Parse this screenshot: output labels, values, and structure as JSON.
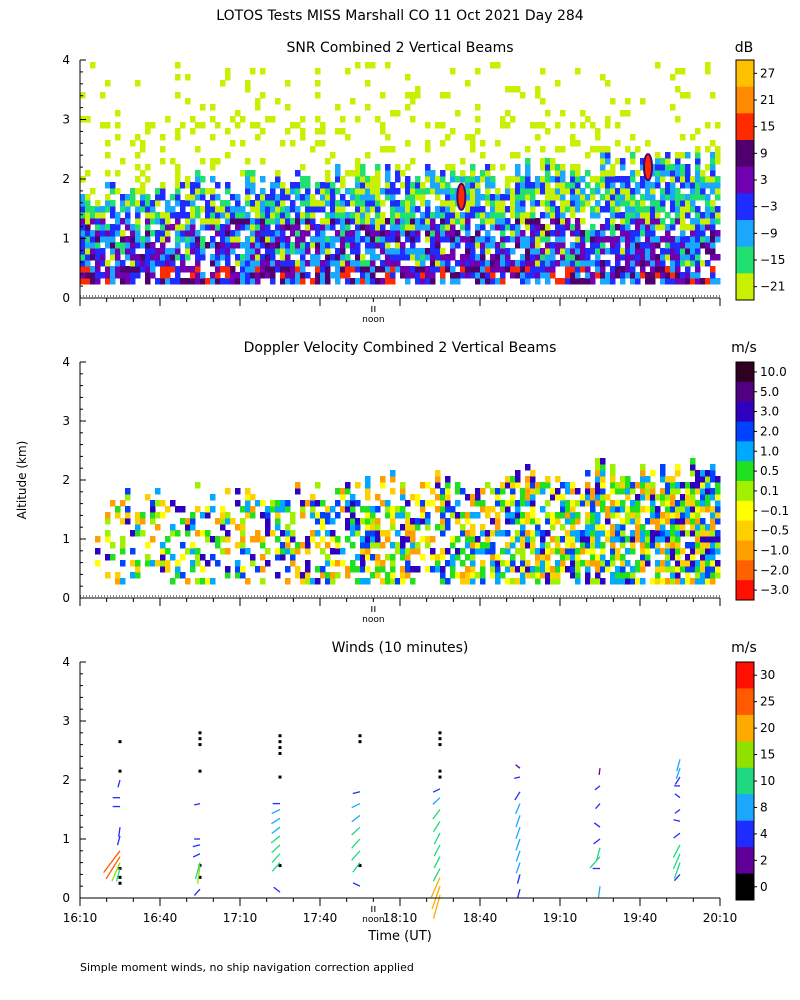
{
  "figure": {
    "title": "LOTOS Tests MISS Marshall CO  11 Oct 2021 Day 284",
    "y_axis_label": "Altitude (km)",
    "x_axis_label": "Time (UT)",
    "noon_label": "noon",
    "footnote": "Simple moment winds, no ship navigation correction applied"
  },
  "chart_data": [
    {
      "type": "heatmap",
      "title": "SNR Combined 2 Vertical Beams",
      "unit": "dB",
      "ylim": [
        0,
        4
      ],
      "yticks": [
        "0",
        "1",
        "2",
        "3",
        "4"
      ],
      "xlim": [
        970,
        1210
      ],
      "colorbar_labels": [
        "27",
        "21",
        "15",
        "9",
        "3",
        "−3",
        "−9",
        "−15",
        "−21"
      ],
      "colorbar_colors": [
        "#ffc000",
        "#ff8c00",
        "#ff2a00",
        "#50006e",
        "#7000b0",
        "#1e2cff",
        "#1aa8ff",
        "#22e070",
        "#c8f000"
      ],
      "features": [
        {
          "label": "echo layer top",
          "time_range": [
            970,
            1210
          ],
          "approx_top_km_start": 1.9,
          "approx_top_km_end": 2.4
        },
        {
          "label": "high SNR spot",
          "time": 1113,
          "alt_km": 1.7
        },
        {
          "label": "high SNR spot",
          "time": 1183,
          "alt_km": 2.2
        }
      ]
    },
    {
      "type": "heatmap",
      "title": "Doppler Velocity Combined 2 Vertical Beams",
      "unit": "m/s",
      "ylim": [
        0,
        4
      ],
      "yticks": [
        "0",
        "1",
        "2",
        "3",
        "4"
      ],
      "xlim": [
        970,
        1210
      ],
      "colorbar_labels": [
        "10.0",
        "5.0",
        "3.0",
        "2.0",
        "1.0",
        "0.5",
        "0.1",
        "−0.1",
        "−0.5",
        "−1.0",
        "−2.0",
        "−3.0"
      ],
      "colorbar_colors": [
        "#300020",
        "#500080",
        "#3000c0",
        "#0040ff",
        "#00a8ff",
        "#20e020",
        "#a0f000",
        "#ffff00",
        "#ffd000",
        "#ffa000",
        "#ff6000",
        "#ff1000"
      ]
    },
    {
      "type": "scatter",
      "title": "Winds (10 minutes)",
      "unit": "m/s",
      "ylim": [
        0,
        4
      ],
      "yticks": [
        "0",
        "1",
        "2",
        "3",
        "4"
      ],
      "xlim": [
        970,
        1210
      ],
      "xticks": [
        970,
        1000,
        1030,
        1060,
        1090,
        1120,
        1150,
        1180,
        1210
      ],
      "xtick_labels": [
        "16:10",
        "16:40",
        "17:10",
        "17:40",
        "18:10",
        "18:40",
        "19:10",
        "19:40",
        "20:10"
      ],
      "colorbar_labels": [
        "30",
        "25",
        "20",
        "15",
        "10",
        "8",
        "4",
        "2",
        "0"
      ],
      "colorbar_colors": [
        "#ff1000",
        "#ff5a00",
        "#ffaa00",
        "#90e000",
        "#20d880",
        "#1aa8ff",
        "#1e2cff",
        "#60009a",
        "#000000"
      ],
      "profiles": [
        {
          "time": 985,
          "levels": [
            {
              "alt": 0.25,
              "speed": 0
            },
            {
              "alt": 0.35,
              "speed": 0
            },
            {
              "alt": 0.5,
              "speed": 0
            },
            {
              "alt": 0.5,
              "speed": 10,
              "dir": 200
            },
            {
              "alt": 0.6,
              "speed": 18,
              "dir": 210
            },
            {
              "alt": 0.7,
              "speed": 26,
              "dir": 220
            },
            {
              "alt": 0.8,
              "speed": 28,
              "dir": 225
            },
            {
              "alt": 1.05,
              "speed": 6,
              "dir": 200
            },
            {
              "alt": 1.2,
              "speed": 6,
              "dir": 190
            },
            {
              "alt": 1.55,
              "speed": 6,
              "dir": 270
            },
            {
              "alt": 1.7,
              "speed": 6,
              "dir": 270
            },
            {
              "alt": 2.0,
              "speed": 4,
              "dir": 200
            },
            {
              "alt": 2.15,
              "speed": 0
            },
            {
              "alt": 2.65,
              "speed": 0
            }
          ]
        },
        {
          "time": 1015,
          "levels": [
            {
              "alt": 0.15,
              "speed": 6,
              "dir": 230
            },
            {
              "alt": 0.35,
              "speed": 0
            },
            {
              "alt": 0.55,
              "speed": 0
            },
            {
              "alt": 0.55,
              "speed": 15,
              "dir": 190
            },
            {
              "alt": 0.6,
              "speed": 14,
              "dir": 200
            },
            {
              "alt": 0.75,
              "speed": 6,
              "dir": 250
            },
            {
              "alt": 0.9,
              "speed": 6,
              "dir": 260
            },
            {
              "alt": 1.0,
              "speed": 4,
              "dir": 270
            },
            {
              "alt": 1.6,
              "speed": 4,
              "dir": 260
            },
            {
              "alt": 2.15,
              "speed": 0
            },
            {
              "alt": 2.6,
              "speed": 0
            },
            {
              "alt": 2.7,
              "speed": 0
            },
            {
              "alt": 2.8,
              "speed": 0
            }
          ]
        },
        {
          "time": 1045,
          "levels": [
            {
              "alt": 0.1,
              "speed": 6,
              "dir": 300
            },
            {
              "alt": 0.55,
              "speed": 0
            },
            {
              "alt": 0.6,
              "speed": 10,
              "dir": 230
            },
            {
              "alt": 0.75,
              "speed": 10,
              "dir": 230
            },
            {
              "alt": 0.9,
              "speed": 10,
              "dir": 235
            },
            {
              "alt": 1.05,
              "speed": 10,
              "dir": 240
            },
            {
              "alt": 1.2,
              "speed": 9,
              "dir": 240
            },
            {
              "alt": 1.35,
              "speed": 9,
              "dir": 245
            },
            {
              "alt": 1.5,
              "speed": 8,
              "dir": 250
            },
            {
              "alt": 1.6,
              "speed": 6,
              "dir": 270
            },
            {
              "alt": 2.05,
              "speed": 0
            },
            {
              "alt": 2.45,
              "speed": 0
            },
            {
              "alt": 2.55,
              "speed": 0
            },
            {
              "alt": 2.65,
              "speed": 0
            },
            {
              "alt": 2.75,
              "speed": 0
            }
          ]
        },
        {
          "time": 1075,
          "levels": [
            {
              "alt": 0.2,
              "speed": 6,
              "dir": 290
            },
            {
              "alt": 0.55,
              "speed": 0
            },
            {
              "alt": 0.6,
              "speed": 10,
              "dir": 225
            },
            {
              "alt": 0.8,
              "speed": 11,
              "dir": 230
            },
            {
              "alt": 1.0,
              "speed": 11,
              "dir": 230
            },
            {
              "alt": 1.2,
              "speed": 10,
              "dir": 235
            },
            {
              "alt": 1.4,
              "speed": 9,
              "dir": 240
            },
            {
              "alt": 1.6,
              "speed": 8,
              "dir": 250
            },
            {
              "alt": 1.8,
              "speed": 6,
              "dir": 260
            },
            {
              "alt": 2.65,
              "speed": 0
            },
            {
              "alt": 2.75,
              "speed": 0
            }
          ]
        },
        {
          "time": 1105,
          "levels": [
            {
              "alt": 0.05,
              "speed": 22,
              "dir": 200
            },
            {
              "alt": 0.2,
              "speed": 22,
              "dir": 205
            },
            {
              "alt": 0.35,
              "speed": 20,
              "dir": 210
            },
            {
              "alt": 0.5,
              "speed": 12,
              "dir": 215
            },
            {
              "alt": 0.7,
              "speed": 10,
              "dir": 215
            },
            {
              "alt": 0.9,
              "speed": 10,
              "dir": 215
            },
            {
              "alt": 1.1,
              "speed": 10,
              "dir": 215
            },
            {
              "alt": 1.3,
              "speed": 10,
              "dir": 220
            },
            {
              "alt": 1.5,
              "speed": 10,
              "dir": 225
            },
            {
              "alt": 1.7,
              "speed": 8,
              "dir": 235
            },
            {
              "alt": 1.85,
              "speed": 6,
              "dir": 250
            },
            {
              "alt": 2.05,
              "speed": 0
            },
            {
              "alt": 2.15,
              "speed": 0
            },
            {
              "alt": 2.6,
              "speed": 0
            },
            {
              "alt": 2.7,
              "speed": 0
            },
            {
              "alt": 2.8,
              "speed": 0
            }
          ]
        },
        {
          "time": 1135,
          "levels": [
            {
              "alt": 0.15,
              "speed": 6,
              "dir": 200
            },
            {
              "alt": 0.4,
              "speed": 6,
              "dir": 200
            },
            {
              "alt": 0.6,
              "speed": 8,
              "dir": 205
            },
            {
              "alt": 0.8,
              "speed": 8,
              "dir": 205
            },
            {
              "alt": 1.0,
              "speed": 9,
              "dir": 205
            },
            {
              "alt": 1.2,
              "speed": 9,
              "dir": 205
            },
            {
              "alt": 1.4,
              "speed": 9,
              "dir": 205
            },
            {
              "alt": 1.6,
              "speed": 8,
              "dir": 210
            },
            {
              "alt": 1.8,
              "speed": 7,
              "dir": 220
            },
            {
              "alt": 2.05,
              "speed": 4,
              "dir": 260
            },
            {
              "alt": 2.2,
              "speed": 3,
              "dir": 300
            }
          ]
        },
        {
          "time": 1165,
          "levels": [
            {
              "alt": 0.2,
              "speed": 8,
              "dir": 190
            },
            {
              "alt": 0.5,
              "speed": 6,
              "dir": 270
            },
            {
              "alt": 0.7,
              "speed": 14,
              "dir": 230
            },
            {
              "alt": 0.85,
              "speed": 10,
              "dir": 200
            },
            {
              "alt": 1.0,
              "speed": 6,
              "dir": 240
            },
            {
              "alt": 1.2,
              "speed": 5,
              "dir": 300
            },
            {
              "alt": 1.6,
              "speed": 4,
              "dir": 230
            },
            {
              "alt": 1.9,
              "speed": 4,
              "dir": 240
            },
            {
              "alt": 2.2,
              "speed": 3,
              "dir": 190
            }
          ]
        },
        {
          "time": 1195,
          "levels": [
            {
              "alt": 0.4,
              "speed": 6,
              "dir": 230
            },
            {
              "alt": 0.6,
              "speed": 14,
              "dir": 205
            },
            {
              "alt": 0.75,
              "speed": 14,
              "dir": 210
            },
            {
              "alt": 0.9,
              "speed": 12,
              "dir": 215
            },
            {
              "alt": 1.1,
              "speed": 6,
              "dir": 240
            },
            {
              "alt": 1.3,
              "speed": 5,
              "dir": 280
            },
            {
              "alt": 1.5,
              "speed": 4,
              "dir": 240
            },
            {
              "alt": 1.7,
              "speed": 4,
              "dir": 300
            },
            {
              "alt": 1.9,
              "speed": 4,
              "dir": 270
            },
            {
              "alt": 2.05,
              "speed": 6,
              "dir": 220
            },
            {
              "alt": 2.2,
              "speed": 8,
              "dir": 205
            },
            {
              "alt": 2.35,
              "speed": 9,
              "dir": 200
            }
          ]
        }
      ]
    }
  ]
}
